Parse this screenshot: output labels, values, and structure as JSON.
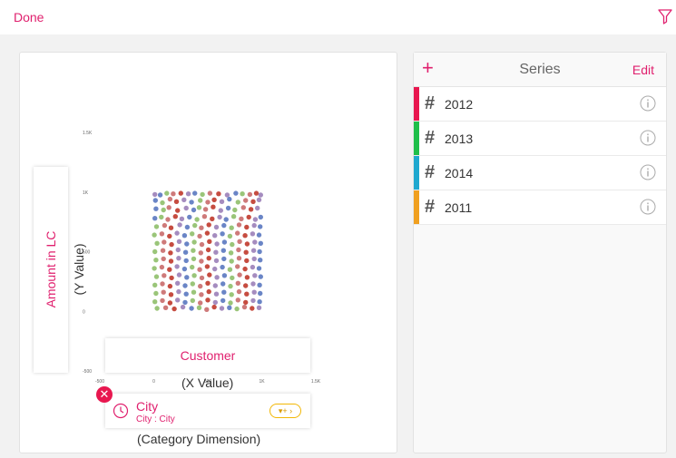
{
  "toolbar": {
    "done_label": "Done",
    "filter_icon": "filter-icon"
  },
  "chart_axes": {
    "y_ticks": [
      "1.5K",
      "1K",
      "500",
      "0",
      "-500"
    ],
    "x_ticks": [
      "-500",
      "0",
      "500",
      "1K",
      "1.5K"
    ]
  },
  "drop_zones": {
    "y_measure": "Amount in LC",
    "y_caption": "(Y Value)",
    "x_measure": "Customer",
    "x_caption": "(X Value)",
    "category_caption": "(Category Dimension)"
  },
  "category": {
    "title": "City",
    "subtitle": "City : City",
    "badge": "▾+ ›",
    "remove_label": "✕"
  },
  "series_panel": {
    "title": "Series",
    "add_label": "+",
    "edit_label": "Edit",
    "items": [
      {
        "label": "2012",
        "color": "#e8174f"
      },
      {
        "label": "2013",
        "color": "#1fbf4a"
      },
      {
        "label": "2014",
        "color": "#1fa8cf"
      },
      {
        "label": "2011",
        "color": "#f0a020"
      }
    ]
  },
  "chart_data": {
    "type": "scatter",
    "title": "",
    "xlabel": "",
    "ylabel": "",
    "xlim": [
      -500,
      1500
    ],
    "ylim": [
      -500,
      1500
    ],
    "point_colors": [
      "#5a78c0",
      "#c0392b",
      "#8fbf6a",
      "#9b7fb8",
      "#c96b6b"
    ],
    "series": [
      {
        "name": "",
        "points": [
          [
            10,
            980
          ],
          [
            60,
            975
          ],
          [
            120,
            990
          ],
          [
            180,
            985
          ],
          [
            250,
            990
          ],
          [
            320,
            985
          ],
          [
            380,
            990
          ],
          [
            450,
            980
          ],
          [
            520,
            990
          ],
          [
            600,
            985
          ],
          [
            680,
            975
          ],
          [
            760,
            990
          ],
          [
            820,
            985
          ],
          [
            890,
            980
          ],
          [
            950,
            990
          ],
          [
            990,
            975
          ],
          [
            15,
            930
          ],
          [
            80,
            910
          ],
          [
            150,
            940
          ],
          [
            210,
            920
          ],
          [
            280,
            935
          ],
          [
            350,
            915
          ],
          [
            430,
            930
          ],
          [
            500,
            915
          ],
          [
            560,
            935
          ],
          [
            630,
            920
          ],
          [
            700,
            940
          ],
          [
            780,
            915
          ],
          [
            850,
            930
          ],
          [
            920,
            920
          ],
          [
            975,
            935
          ],
          [
            20,
            860
          ],
          [
            90,
            850
          ],
          [
            140,
            870
          ],
          [
            220,
            845
          ],
          [
            300,
            865
          ],
          [
            370,
            850
          ],
          [
            420,
            870
          ],
          [
            480,
            855
          ],
          [
            550,
            875
          ],
          [
            620,
            845
          ],
          [
            690,
            865
          ],
          [
            750,
            850
          ],
          [
            830,
            870
          ],
          [
            900,
            855
          ],
          [
            960,
            865
          ],
          [
            10,
            780
          ],
          [
            70,
            790
          ],
          [
            130,
            770
          ],
          [
            200,
            795
          ],
          [
            260,
            775
          ],
          [
            330,
            790
          ],
          [
            400,
            770
          ],
          [
            470,
            795
          ],
          [
            540,
            775
          ],
          [
            610,
            790
          ],
          [
            670,
            770
          ],
          [
            740,
            795
          ],
          [
            810,
            775
          ],
          [
            880,
            790
          ],
          [
            940,
            770
          ],
          [
            990,
            790
          ],
          [
            25,
            710
          ],
          [
            100,
            720
          ],
          [
            160,
            700
          ],
          [
            240,
            725
          ],
          [
            310,
            705
          ],
          [
            380,
            720
          ],
          [
            440,
            700
          ],
          [
            510,
            725
          ],
          [
            580,
            705
          ],
          [
            650,
            720
          ],
          [
            720,
            700
          ],
          [
            790,
            725
          ],
          [
            860,
            705
          ],
          [
            930,
            720
          ],
          [
            985,
            710
          ],
          [
            5,
            640
          ],
          [
            75,
            650
          ],
          [
            145,
            630
          ],
          [
            215,
            655
          ],
          [
            285,
            635
          ],
          [
            355,
            650
          ],
          [
            425,
            630
          ],
          [
            495,
            655
          ],
          [
            565,
            635
          ],
          [
            635,
            650
          ],
          [
            705,
            630
          ],
          [
            775,
            655
          ],
          [
            845,
            635
          ],
          [
            915,
            650
          ],
          [
            975,
            640
          ],
          [
            30,
            570
          ],
          [
            95,
            580
          ],
          [
            165,
            560
          ],
          [
            235,
            585
          ],
          [
            305,
            565
          ],
          [
            375,
            580
          ],
          [
            445,
            560
          ],
          [
            515,
            585
          ],
          [
            585,
            565
          ],
          [
            655,
            580
          ],
          [
            725,
            560
          ],
          [
            795,
            585
          ],
          [
            865,
            565
          ],
          [
            935,
            580
          ],
          [
            990,
            570
          ],
          [
            10,
            500
          ],
          [
            85,
            510
          ],
          [
            155,
            490
          ],
          [
            225,
            515
          ],
          [
            295,
            495
          ],
          [
            365,
            510
          ],
          [
            435,
            490
          ],
          [
            505,
            515
          ],
          [
            575,
            495
          ],
          [
            645,
            510
          ],
          [
            715,
            490
          ],
          [
            785,
            515
          ],
          [
            855,
            495
          ],
          [
            925,
            510
          ],
          [
            980,
            500
          ],
          [
            20,
            430
          ],
          [
            90,
            440
          ],
          [
            160,
            420
          ],
          [
            230,
            445
          ],
          [
            300,
            425
          ],
          [
            370,
            440
          ],
          [
            440,
            420
          ],
          [
            510,
            445
          ],
          [
            580,
            425
          ],
          [
            650,
            440
          ],
          [
            720,
            420
          ],
          [
            790,
            445
          ],
          [
            860,
            425
          ],
          [
            930,
            440
          ],
          [
            985,
            430
          ],
          [
            5,
            360
          ],
          [
            75,
            370
          ],
          [
            145,
            350
          ],
          [
            215,
            375
          ],
          [
            285,
            355
          ],
          [
            355,
            370
          ],
          [
            425,
            350
          ],
          [
            495,
            375
          ],
          [
            565,
            355
          ],
          [
            635,
            370
          ],
          [
            705,
            350
          ],
          [
            775,
            375
          ],
          [
            845,
            355
          ],
          [
            915,
            370
          ],
          [
            975,
            360
          ],
          [
            25,
            290
          ],
          [
            95,
            300
          ],
          [
            165,
            280
          ],
          [
            235,
            305
          ],
          [
            305,
            285
          ],
          [
            375,
            300
          ],
          [
            445,
            280
          ],
          [
            515,
            305
          ],
          [
            585,
            285
          ],
          [
            655,
            300
          ],
          [
            725,
            280
          ],
          [
            795,
            305
          ],
          [
            865,
            285
          ],
          [
            935,
            300
          ],
          [
            990,
            290
          ],
          [
            10,
            220
          ],
          [
            80,
            230
          ],
          [
            150,
            210
          ],
          [
            220,
            235
          ],
          [
            290,
            215
          ],
          [
            360,
            230
          ],
          [
            430,
            210
          ],
          [
            500,
            235
          ],
          [
            570,
            215
          ],
          [
            640,
            230
          ],
          [
            710,
            210
          ],
          [
            780,
            235
          ],
          [
            850,
            215
          ],
          [
            920,
            230
          ],
          [
            980,
            220
          ],
          [
            20,
            150
          ],
          [
            90,
            160
          ],
          [
            160,
            140
          ],
          [
            230,
            165
          ],
          [
            300,
            145
          ],
          [
            370,
            160
          ],
          [
            440,
            140
          ],
          [
            510,
            165
          ],
          [
            580,
            145
          ],
          [
            650,
            160
          ],
          [
            720,
            140
          ],
          [
            790,
            165
          ],
          [
            860,
            145
          ],
          [
            930,
            160
          ],
          [
            985,
            150
          ],
          [
            10,
            80
          ],
          [
            80,
            90
          ],
          [
            150,
            70
          ],
          [
            220,
            95
          ],
          [
            290,
            75
          ],
          [
            360,
            90
          ],
          [
            430,
            70
          ],
          [
            500,
            95
          ],
          [
            570,
            75
          ],
          [
            640,
            90
          ],
          [
            710,
            70
          ],
          [
            780,
            95
          ],
          [
            850,
            75
          ],
          [
            920,
            90
          ],
          [
            980,
            80
          ],
          [
            30,
            25
          ],
          [
            110,
            30
          ],
          [
            190,
            20
          ],
          [
            270,
            35
          ],
          [
            350,
            25
          ],
          [
            420,
            30
          ],
          [
            490,
            15
          ],
          [
            560,
            35
          ],
          [
            630,
            25
          ],
          [
            700,
            30
          ],
          [
            770,
            20
          ],
          [
            840,
            35
          ],
          [
            910,
            25
          ],
          [
            975,
            30
          ]
        ]
      }
    ]
  }
}
